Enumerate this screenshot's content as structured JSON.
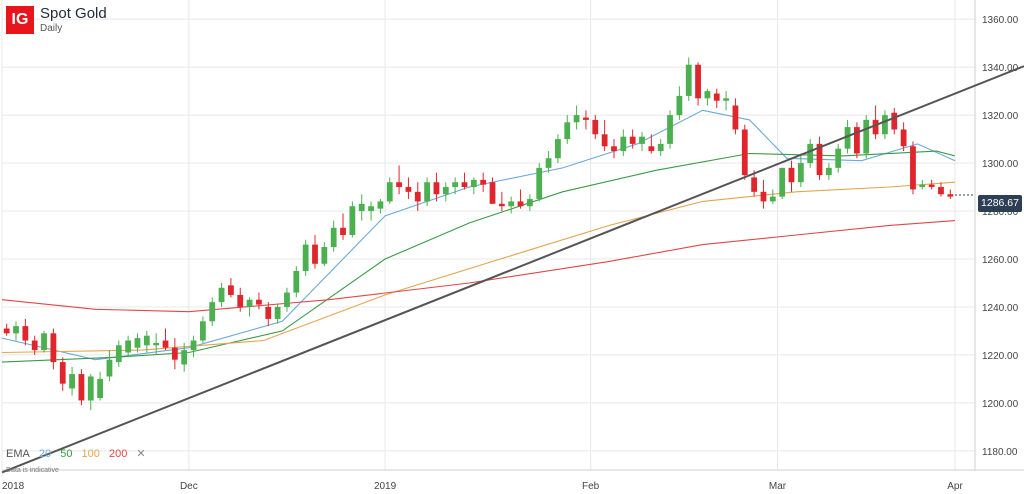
{
  "header": {
    "logo": "IG",
    "title": "Spot Gold",
    "subtitle": "Daily"
  },
  "legend": {
    "label": "EMA",
    "periods": [
      "20",
      "50",
      "100",
      "200"
    ],
    "close": "✕"
  },
  "footnote": "Data is indicative",
  "last_price": "1286.67",
  "colors": {
    "up": "#4caf50",
    "down": "#e0262d",
    "ema20": "#6aa9dc",
    "ema50": "#3a9a46",
    "ema100": "#e3a54d",
    "ema200": "#e04848",
    "trendline": "#555555",
    "grid": "#e8e8e8",
    "badge": "#2d3e55"
  },
  "chart_data": {
    "type": "candlestick",
    "title": "Spot Gold",
    "subtitle": "Daily",
    "x_labels": [
      "2018",
      "Dec",
      "2019",
      "Feb",
      "Mar",
      "Apr"
    ],
    "y_ticks": [
      "1180.00",
      "1200.00",
      "1220.00",
      "1240.00",
      "1260.00",
      "1280.00",
      "1300.00",
      "1320.00",
      "1340.00",
      "1360.00"
    ],
    "ylim": [
      1172,
      1368
    ],
    "n_sessions": 102,
    "x_label_positions": [
      0,
      20,
      41,
      63,
      83,
      102
    ],
    "last_price": 1286.67,
    "candles": [
      [
        1231,
        1233,
        1228,
        1229
      ],
      [
        1229,
        1234,
        1226,
        1232
      ],
      [
        1232,
        1235,
        1224,
        1226
      ],
      [
        1226,
        1228,
        1220,
        1222
      ],
      [
        1222,
        1230,
        1221,
        1229
      ],
      [
        1229,
        1231,
        1214,
        1217
      ],
      [
        1217,
        1219,
        1205,
        1208
      ],
      [
        1206,
        1215,
        1203,
        1212
      ],
      [
        1212,
        1214,
        1199,
        1201
      ],
      [
        1201,
        1212,
        1197,
        1211
      ],
      [
        1202,
        1213,
        1201,
        1210
      ],
      [
        1211,
        1222,
        1209,
        1218
      ],
      [
        1217,
        1226,
        1215,
        1224
      ],
      [
        1221,
        1228,
        1219,
        1226
      ],
      [
        1223,
        1229,
        1221,
        1227
      ],
      [
        1224,
        1230,
        1221,
        1228
      ],
      [
        1224,
        1229,
        1220,
        1225
      ],
      [
        1226,
        1231,
        1222,
        1223
      ],
      [
        1223,
        1227,
        1214,
        1218
      ],
      [
        1216,
        1225,
        1213,
        1222
      ],
      [
        1222,
        1228,
        1219,
        1226
      ],
      [
        1226,
        1236,
        1225,
        1234
      ],
      [
        1234,
        1244,
        1232,
        1242
      ],
      [
        1242,
        1250,
        1240,
        1248
      ],
      [
        1249,
        1252,
        1244,
        1245
      ],
      [
        1245,
        1248,
        1238,
        1240
      ],
      [
        1240,
        1244,
        1236,
        1243
      ],
      [
        1243,
        1246,
        1239,
        1241
      ],
      [
        1240,
        1242,
        1232,
        1235
      ],
      [
        1235,
        1241,
        1233,
        1240
      ],
      [
        1240,
        1248,
        1238,
        1246
      ],
      [
        1246,
        1257,
        1244,
        1255
      ],
      [
        1255,
        1268,
        1253,
        1266
      ],
      [
        1266,
        1270,
        1256,
        1258
      ],
      [
        1258,
        1267,
        1257,
        1265
      ],
      [
        1265,
        1276,
        1263,
        1273
      ],
      [
        1273,
        1279,
        1268,
        1270
      ],
      [
        1270,
        1284,
        1269,
        1282
      ],
      [
        1280,
        1287,
        1276,
        1283
      ],
      [
        1280,
        1284,
        1276,
        1282
      ],
      [
        1281,
        1285,
        1279,
        1284
      ],
      [
        1284,
        1294,
        1283,
        1292
      ],
      [
        1292,
        1299,
        1287,
        1290
      ],
      [
        1290,
        1294,
        1285,
        1288
      ],
      [
        1288,
        1292,
        1280,
        1284
      ],
      [
        1284,
        1294,
        1282,
        1292
      ],
      [
        1292,
        1296,
        1284,
        1287
      ],
      [
        1287,
        1292,
        1284,
        1290
      ],
      [
        1290,
        1294,
        1287,
        1292
      ],
      [
        1292,
        1296,
        1289,
        1290
      ],
      [
        1290,
        1294,
        1287,
        1293
      ],
      [
        1293,
        1296,
        1288,
        1291
      ],
      [
        1292,
        1294,
        1283,
        1283
      ],
      [
        1283,
        1288,
        1280,
        1282
      ],
      [
        1282,
        1286,
        1279,
        1284
      ],
      [
        1284,
        1289,
        1281,
        1282
      ],
      [
        1282,
        1287,
        1280,
        1285
      ],
      [
        1285,
        1300,
        1284,
        1298
      ],
      [
        1298,
        1305,
        1296,
        1302
      ],
      [
        1302,
        1312,
        1300,
        1310
      ],
      [
        1310,
        1320,
        1308,
        1317
      ],
      [
        1317,
        1324,
        1314,
        1320
      ],
      [
        1319,
        1322,
        1314,
        1318
      ],
      [
        1318,
        1320,
        1310,
        1312
      ],
      [
        1312,
        1318,
        1305,
        1307
      ],
      [
        1307,
        1310,
        1302,
        1305
      ],
      [
        1305,
        1314,
        1303,
        1311
      ],
      [
        1311,
        1314,
        1306,
        1308
      ],
      [
        1308,
        1313,
        1305,
        1311
      ],
      [
        1307,
        1312,
        1304,
        1305
      ],
      [
        1305,
        1310,
        1303,
        1308
      ],
      [
        1308,
        1322,
        1306,
        1320
      ],
      [
        1320,
        1332,
        1318,
        1328
      ],
      [
        1328,
        1344,
        1326,
        1341
      ],
      [
        1341,
        1342,
        1324,
        1327
      ],
      [
        1327,
        1331,
        1324,
        1330
      ],
      [
        1329,
        1331,
        1323,
        1326
      ],
      [
        1326,
        1330,
        1322,
        1327
      ],
      [
        1324,
        1327,
        1312,
        1314
      ],
      [
        1314,
        1316,
        1293,
        1295
      ],
      [
        1294,
        1297,
        1286,
        1288
      ],
      [
        1288,
        1293,
        1281,
        1284
      ],
      [
        1284,
        1289,
        1283,
        1286
      ],
      [
        1286,
        1298,
        1285,
        1298
      ],
      [
        1298,
        1301,
        1288,
        1292
      ],
      [
        1292,
        1304,
        1290,
        1300
      ],
      [
        1300,
        1310,
        1298,
        1308
      ],
      [
        1308,
        1311,
        1293,
        1295
      ],
      [
        1295,
        1300,
        1293,
        1298
      ],
      [
        1298,
        1308,
        1296,
        1306
      ],
      [
        1306,
        1318,
        1304,
        1315
      ],
      [
        1315,
        1317,
        1302,
        1304
      ],
      [
        1304,
        1320,
        1302,
        1318
      ],
      [
        1318,
        1324,
        1310,
        1312
      ],
      [
        1312,
        1322,
        1310,
        1320
      ],
      [
        1321,
        1323,
        1312,
        1314
      ],
      [
        1314,
        1317,
        1305,
        1307
      ],
      [
        1307,
        1309,
        1287,
        1289
      ],
      [
        1290,
        1293,
        1289,
        1291
      ],
      [
        1291,
        1293,
        1289,
        1290
      ],
      [
        1290,
        1292,
        1286,
        1287
      ],
      [
        1287,
        1289,
        1285,
        1286
      ]
    ],
    "series": [
      {
        "name": "20",
        "points": [
          [
            0,
            1227
          ],
          [
            10,
            1218
          ],
          [
            20,
            1223
          ],
          [
            30,
            1234
          ],
          [
            41,
            1278
          ],
          [
            50,
            1290
          ],
          [
            60,
            1298
          ],
          [
            68,
            1308
          ],
          [
            75,
            1322
          ],
          [
            80,
            1318
          ],
          [
            84,
            1302
          ],
          [
            92,
            1301
          ],
          [
            98,
            1308
          ],
          [
            102,
            1301
          ]
        ]
      },
      {
        "name": "50",
        "points": [
          [
            0,
            1217
          ],
          [
            12,
            1219
          ],
          [
            20,
            1221
          ],
          [
            30,
            1230
          ],
          [
            41,
            1260
          ],
          [
            50,
            1275
          ],
          [
            60,
            1288
          ],
          [
            70,
            1297
          ],
          [
            80,
            1304
          ],
          [
            90,
            1303
          ],
          [
            100,
            1305
          ],
          [
            102,
            1303
          ]
        ]
      },
      {
        "name": "100",
        "points": [
          [
            0,
            1221
          ],
          [
            15,
            1222
          ],
          [
            28,
            1226
          ],
          [
            41,
            1245
          ],
          [
            55,
            1262
          ],
          [
            65,
            1274
          ],
          [
            75,
            1284
          ],
          [
            85,
            1288
          ],
          [
            95,
            1290
          ],
          [
            102,
            1292
          ]
        ]
      },
      {
        "name": "200",
        "points": [
          [
            0,
            1243
          ],
          [
            10,
            1239
          ],
          [
            20,
            1238
          ],
          [
            35,
            1243
          ],
          [
            50,
            1250
          ],
          [
            65,
            1259
          ],
          [
            75,
            1266
          ],
          [
            85,
            1270
          ],
          [
            95,
            1274
          ],
          [
            102,
            1276
          ]
        ]
      }
    ],
    "trendline": [
      [
        0,
        1186
      ],
      [
        102,
        1340
      ]
    ],
    "grid": true
  }
}
